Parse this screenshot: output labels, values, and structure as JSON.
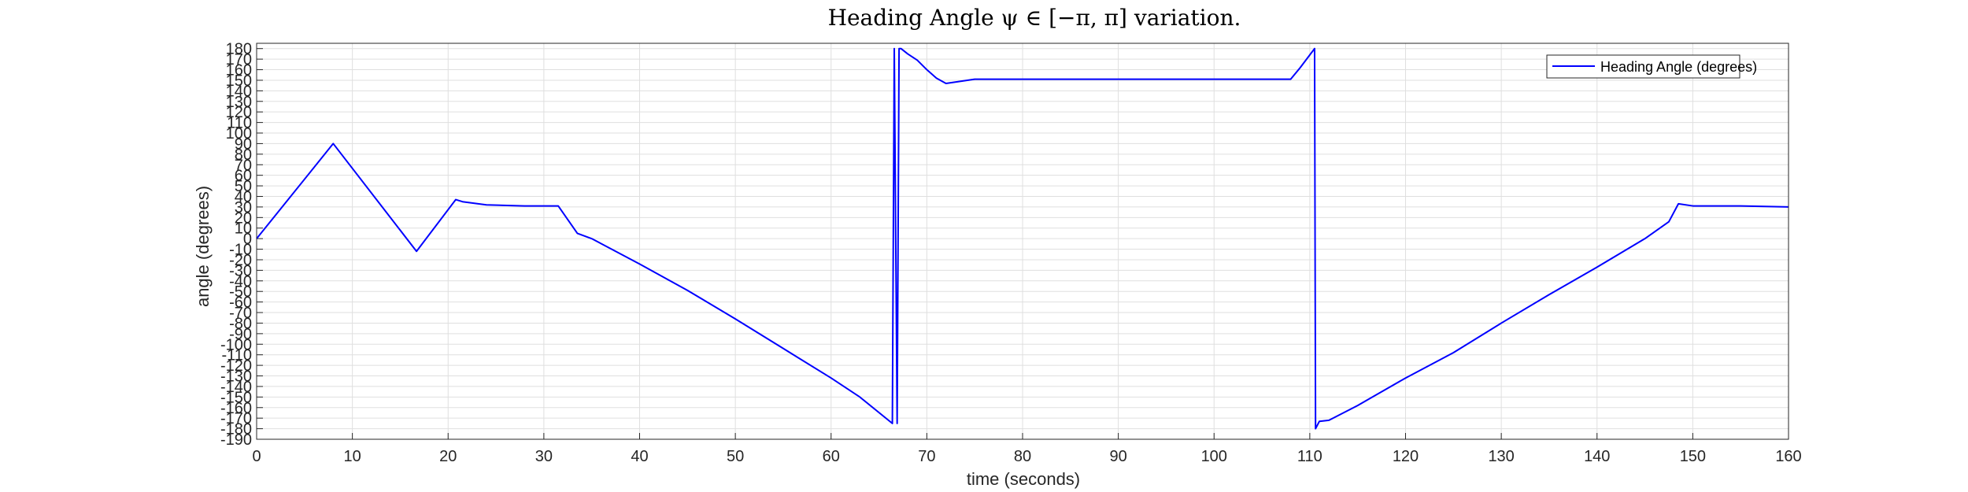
{
  "chart_data": {
    "type": "line",
    "title": "Heading Angle ψ ∈ [−π, π] variation.",
    "xlabel": "time (seconds)",
    "ylabel": "angle (degrees)",
    "xlim": [
      0,
      160
    ],
    "ylim": [
      -190,
      185
    ],
    "xticks": [
      0,
      10,
      20,
      30,
      40,
      50,
      60,
      70,
      80,
      90,
      100,
      110,
      120,
      130,
      140,
      150,
      160
    ],
    "yticks": [
      -190,
      -180,
      -170,
      -160,
      -150,
      -140,
      -130,
      -120,
      -110,
      -100,
      -90,
      -80,
      -70,
      -60,
      -50,
      -40,
      -30,
      -20,
      -10,
      0,
      10,
      20,
      30,
      40,
      50,
      60,
      70,
      80,
      90,
      100,
      110,
      120,
      130,
      140,
      150,
      160,
      170,
      180
    ],
    "grid": true,
    "legend_position": "top-right",
    "series": [
      {
        "name": "Heading Angle (degrees)",
        "color": "#0000ff",
        "x": [
          0,
          8,
          16.7,
          20.8,
          21.5,
          24,
          28,
          31.5,
          33.5,
          35,
          40,
          45,
          50,
          55,
          60,
          63,
          66.4,
          66.6,
          66.9,
          67.1,
          67.3,
          68,
          69,
          70,
          71,
          72,
          75,
          80,
          85,
          90,
          95,
          100,
          105,
          108,
          109,
          110,
          110.5,
          110.6,
          111,
          112,
          115,
          120,
          125,
          130,
          135,
          140,
          145,
          147.5,
          148.5,
          150,
          155,
          160
        ],
        "y": [
          0,
          90,
          -12,
          37,
          35,
          32,
          31,
          31,
          5,
          0,
          -24,
          -49,
          -76,
          -104,
          -132,
          -150,
          -175,
          180,
          -175,
          180,
          180,
          175,
          169,
          160,
          152,
          147,
          151,
          151,
          151,
          151,
          151,
          151,
          151,
          151,
          162,
          174,
          180,
          -180,
          -173,
          -172,
          -158,
          -132,
          -108,
          -80,
          -53,
          -27,
          0,
          16,
          33,
          31,
          31,
          30
        ]
      }
    ]
  }
}
